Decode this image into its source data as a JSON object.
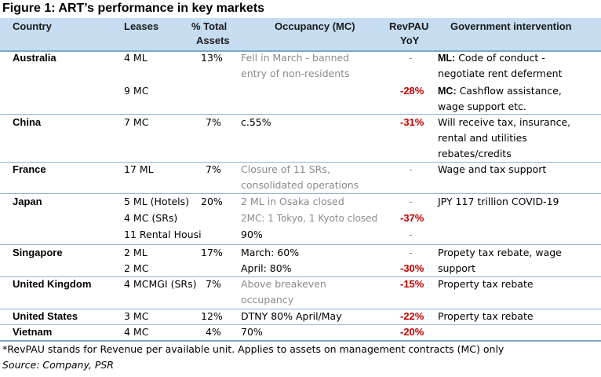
{
  "title": "Figure 1: ART’s performance in key markets",
  "headers": {
    "country": "Country",
    "leases": "Leases",
    "total_assets_1": "% Total",
    "total_assets_2": "Assets",
    "occupancy": "Occupancy (MC)",
    "revpau_1": "RevPAU",
    "revpau_2": "YoY",
    "gov": "Government intervention"
  },
  "rows": {
    "australia": {
      "country": "Australia",
      "lease1": "4 ML",
      "lease2": "9 MC",
      "assets": "13%",
      "occ1": "Fell in March - banned",
      "occ2": "entry of non-residents",
      "rev1": "-",
      "rev2": "-28%",
      "gov1_bold": "ML:",
      "gov1": " Code of conduct -",
      "gov2": "negotiate rent deferment",
      "gov3_bold": "MC:",
      "gov3": " Cashflow assistance,",
      "gov4": "wage support etc."
    },
    "china": {
      "country": "China",
      "lease1": "7 MC",
      "assets": "7%",
      "occ1": "c.55%",
      "rev1": "-31%",
      "gov1": "Will receive tax, insurance,",
      "gov2": "rental and utilities",
      "gov3": "rebates/credits"
    },
    "france": {
      "country": "France",
      "lease1": "17 ML",
      "assets": "7%",
      "occ1": "Closure of 11 SRs,",
      "occ2": "consolidated operations",
      "rev1": "-",
      "gov1": "Wage and tax support"
    },
    "japan": {
      "country": "Japan",
      "lease1": "5 ML (Hotels)",
      "lease2": "4 MC (SRs)",
      "lease3": "11 Rental Housi",
      "assets": "20%",
      "occ1": "2 ML in Osaka closed",
      "occ2": "2MC: 1 Tokyo, 1 Kyoto closed",
      "occ3": "90%",
      "rev1": "-",
      "rev2": "-37%",
      "rev3": "-",
      "gov1": "JPY 117 trillion COVID-19"
    },
    "singapore": {
      "country": "Singapore",
      "lease1": "2 ML",
      "lease2": "2 MC",
      "assets": "17%",
      "occ1": "March: 60%",
      "occ2": "April: 80%",
      "rev1": "-",
      "rev2": "-30%",
      "gov1": "Propety tax rebate, wage",
      "gov2": "support"
    },
    "uk": {
      "country": "United Kingdom",
      "lease1": "4 MCMGI (SRs)",
      "assets": "7%",
      "occ1": "Above breakeven",
      "occ2": "occupancy",
      "rev1": "-15%",
      "gov1": "Property tax rebate"
    },
    "us": {
      "country": "United States",
      "lease1": "3 MC",
      "assets": "12%",
      "occ1": "DTNY 80% April/May",
      "rev1": "-22%",
      "gov1": "Property tax rebate"
    },
    "vietnam": {
      "country": "Vietnam",
      "lease1": "4 MC",
      "assets": "4%",
      "occ1": "70%",
      "rev1": "-20%"
    }
  },
  "footnote": "*RevPAU stands for Revenue per available unit. Applies to assets on management contracts (MC) only",
  "source": "Source: Company, PSR"
}
